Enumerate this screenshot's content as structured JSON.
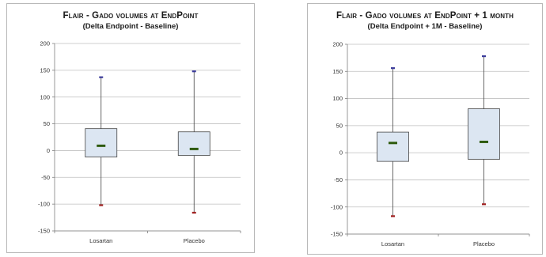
{
  "chart_data": [
    {
      "type": "box",
      "title": "Flair - Gado volumes at EndPoint",
      "subtitle": "(Delta Endpoint - Baseline)",
      "categories": [
        "Losartan",
        "Placebo"
      ],
      "boxes": [
        {
          "min": -102,
          "q1": -12,
          "median": 9,
          "q3": 41,
          "max": 137
        },
        {
          "min": -116,
          "q1": -9,
          "median": 3,
          "q3": 35,
          "max": 148
        }
      ],
      "ylim": [
        -150,
        200
      ],
      "yticks": [
        -150,
        -100,
        -50,
        0,
        50,
        100,
        150,
        200
      ],
      "ytick_labels": [
        "-150",
        "-100",
        "-50",
        "0",
        "50",
        "100",
        "150",
        "200"
      ],
      "grid": true
    },
    {
      "type": "box",
      "title": "Flair - Gado volumes at EndPoint + 1 month",
      "subtitle": "(Delta Endpoint + 1M - Baseline)",
      "categories": [
        "Losartan",
        "Placebo"
      ],
      "boxes": [
        {
          "min": -117,
          "q1": -16,
          "median": 18,
          "q3": 38,
          "max": 156
        },
        {
          "min": -95,
          "q1": -12,
          "median": 20,
          "q3": 81,
          "max": 178
        }
      ],
      "ylim": [
        -150,
        200
      ],
      "yticks": [
        -150,
        -100,
        -50,
        0,
        50,
        100,
        150,
        200
      ],
      "ytick_labels": [
        "-150",
        "-100",
        "-50",
        "0",
        "50",
        "100",
        "150",
        "200"
      ],
      "grid": true
    }
  ],
  "colors": {
    "box_fill": "#dce6f2",
    "box_stroke": "#444444",
    "whisker": "#444444",
    "median": "#2e5a0c",
    "max_cap": "#3a3a9a",
    "min_cap": "#a02020",
    "grid": "#bfbfbf",
    "axis": "#7f7f7f"
  }
}
